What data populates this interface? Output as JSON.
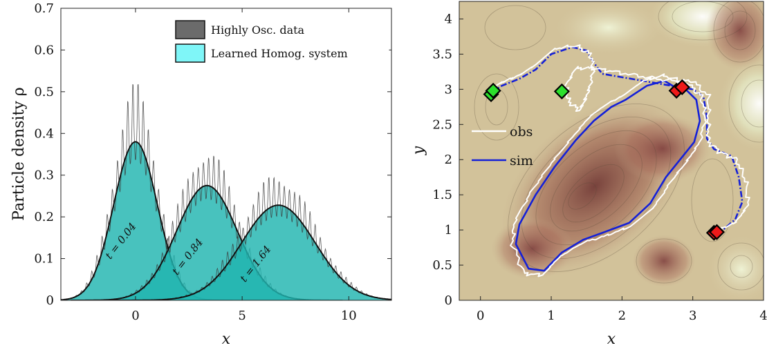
{
  "chart_data": [
    {
      "type": "area",
      "xlim": [
        -3.5,
        12
      ],
      "ylim": [
        0,
        0.7
      ],
      "xticks": [
        0,
        5,
        10
      ],
      "yticks": [
        0,
        0.1,
        0.2,
        0.3,
        0.4,
        0.5,
        0.6,
        0.7
      ],
      "ytick_labels": [
        "0",
        "0.1",
        "0.2",
        "0.3",
        "0.4",
        "0.5",
        "0.6",
        "0.7"
      ],
      "xlabel": "x",
      "ylabel": "Particle density ρ",
      "legend": {
        "position": "top-right",
        "entries": [
          "Highly Osc. data",
          "Learned Homog. system"
        ]
      },
      "series": [
        {
          "label": "t = 0.04",
          "center": 0,
          "peak": 0.38,
          "sigma": 1.02,
          "osc_peak": 0.53
        },
        {
          "label": "t = 0.84",
          "center": 3.35,
          "peak": 0.275,
          "sigma": 1.42,
          "osc_peak": 0.37
        },
        {
          "label": "t = 1.64",
          "center": 6.7,
          "peak": 0.228,
          "sigma": 1.72,
          "osc_peak": 0.31
        }
      ],
      "colors": {
        "data": "#606060",
        "homog": "#20b5b0",
        "homog_legend": "#7ff6f8"
      }
    },
    {
      "type": "line",
      "xlim": [
        -0.3,
        4
      ],
      "ylim": [
        0,
        4.25
      ],
      "xticks": [
        0,
        1,
        2,
        3,
        4
      ],
      "yticks": [
        0,
        0.5,
        1,
        1.5,
        2,
        2.5,
        3,
        3.5,
        4
      ],
      "ytick_labels": [
        "0",
        "0.5",
        "1",
        "1.5",
        "2",
        "2.5",
        "3",
        "3.5",
        "4"
      ],
      "xlabel": "x",
      "ylabel": "y",
      "legend": {
        "position": "left",
        "entries": [
          "obs",
          "sim"
        ]
      },
      "series": [
        {
          "name": "sim",
          "points": [
            [
              0.15,
              2.95
            ],
            [
              0.3,
              3.05
            ],
            [
              0.55,
              3.15
            ],
            [
              0.78,
              3.28
            ],
            [
              1.0,
              3.5
            ],
            [
              1.3,
              3.6
            ],
            [
              1.5,
              3.55
            ],
            [
              1.6,
              3.38
            ],
            [
              1.72,
              3.22
            ],
            [
              1.95,
              3.18
            ],
            [
              2.3,
              3.12
            ],
            [
              2.7,
              3.05
            ],
            [
              3.0,
              3.0
            ],
            [
              3.15,
              2.9
            ],
            [
              3.2,
              2.6
            ],
            [
              3.2,
              2.3
            ],
            [
              3.3,
              2.15
            ],
            [
              3.55,
              2.05
            ],
            [
              3.65,
              1.75
            ],
            [
              3.7,
              1.4
            ],
            [
              3.6,
              1.15
            ],
            [
              3.45,
              1.02
            ],
            [
              3.32,
              0.96
            ]
          ]
        },
        {
          "name": "sim-loop",
          "points": [
            [
              2.8,
              3.0
            ],
            [
              2.6,
              3.12
            ],
            [
              2.35,
              3.05
            ],
            [
              2.05,
              2.85
            ],
            [
              1.85,
              2.75
            ],
            [
              1.6,
              2.55
            ],
            [
              1.35,
              2.28
            ],
            [
              1.05,
              1.9
            ],
            [
              0.78,
              1.5
            ],
            [
              0.55,
              1.08
            ],
            [
              0.5,
              0.8
            ],
            [
              0.68,
              0.45
            ],
            [
              0.9,
              0.42
            ],
            [
              1.15,
              0.68
            ],
            [
              1.45,
              0.86
            ],
            [
              1.75,
              0.97
            ],
            [
              2.1,
              1.1
            ],
            [
              2.4,
              1.38
            ],
            [
              2.62,
              1.75
            ],
            [
              2.82,
              2.0
            ],
            [
              3.02,
              2.25
            ],
            [
              3.1,
              2.55
            ],
            [
              3.05,
              2.85
            ],
            [
              2.9,
              3.0
            ]
          ]
        },
        {
          "name": "obs",
          "points": [
            [
              0.15,
              3.02
            ],
            [
              0.35,
              3.12
            ],
            [
              0.55,
              3.2
            ],
            [
              0.78,
              3.35
            ],
            [
              1.05,
              3.58
            ],
            [
              1.35,
              3.62
            ],
            [
              1.55,
              3.5
            ],
            [
              1.6,
              3.3
            ],
            [
              1.55,
              3.05
            ],
            [
              1.48,
              2.85
            ],
            [
              1.4,
              2.7
            ],
            [
              1.25,
              2.82
            ],
            [
              1.2,
              3.05
            ],
            [
              1.35,
              3.3
            ],
            [
              1.6,
              3.3
            ],
            [
              1.9,
              3.25
            ],
            [
              2.3,
              3.18
            ],
            [
              2.7,
              3.12
            ],
            [
              3.0,
              3.12
            ],
            [
              3.22,
              2.9
            ],
            [
              3.22,
              2.55
            ],
            [
              3.22,
              2.25
            ],
            [
              3.4,
              2.1
            ],
            [
              3.62,
              2.0
            ],
            [
              3.75,
              1.7
            ],
            [
              3.78,
              1.35
            ],
            [
              3.6,
              1.1
            ],
            [
              3.35,
              1.0
            ]
          ]
        },
        {
          "name": "obs-loop",
          "points": [
            [
              2.9,
              3.08
            ],
            [
              2.6,
              3.2
            ],
            [
              2.3,
              3.12
            ],
            [
              2.0,
              2.9
            ],
            [
              1.8,
              2.8
            ],
            [
              1.55,
              2.62
            ],
            [
              1.3,
              2.32
            ],
            [
              1.0,
              1.95
            ],
            [
              0.72,
              1.55
            ],
            [
              0.48,
              1.12
            ],
            [
              0.45,
              0.8
            ],
            [
              0.62,
              0.38
            ],
            [
              0.88,
              0.36
            ],
            [
              1.12,
              0.62
            ],
            [
              1.45,
              0.82
            ],
            [
              1.78,
              0.92
            ],
            [
              2.12,
              1.05
            ],
            [
              2.45,
              1.32
            ],
            [
              2.7,
              1.7
            ],
            [
              2.92,
              1.98
            ],
            [
              3.1,
              2.25
            ],
            [
              3.18,
              2.6
            ],
            [
              3.12,
              2.9
            ],
            [
              2.95,
              3.06
            ]
          ]
        }
      ],
      "markers": [
        {
          "kind": "start",
          "x": 0.15,
          "y": 2.93
        },
        {
          "kind": "start",
          "x": 0.18,
          "y": 2.98
        },
        {
          "kind": "start",
          "x": 1.15,
          "y": 2.97
        },
        {
          "kind": "end",
          "x": 2.77,
          "y": 2.98
        },
        {
          "kind": "end",
          "x": 2.85,
          "y": 3.03
        },
        {
          "kind": "end",
          "x": 3.3,
          "y": 0.96
        },
        {
          "kind": "end",
          "x": 3.34,
          "y": 0.97
        }
      ],
      "colors": {
        "obs": "#ffffff",
        "sim": "#1420d8",
        "start_marker": "#2ce02c",
        "end_marker": "#ee1a1a"
      }
    }
  ]
}
